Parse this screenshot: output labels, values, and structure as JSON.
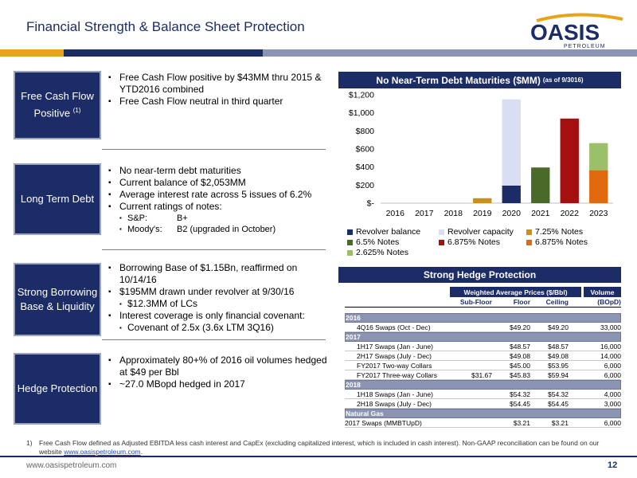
{
  "title": "Financial Strength & Balance Sheet Protection",
  "logo": {
    "brand": "OASIS",
    "sub": "PETROLEUM"
  },
  "sections": [
    {
      "label": "Free Cash Flow Positive",
      "sup": "(1)",
      "bullets": [
        {
          "text": "Free Cash Flow positive by $43MM thru 2015 & YTD2016 combined"
        },
        {
          "text": "Free Cash Flow neutral in third quarter"
        }
      ]
    },
    {
      "label": "Long Term Debt",
      "bullets": [
        {
          "text": "No near-term debt maturities"
        },
        {
          "text": "Current balance of $2,053MM"
        },
        {
          "text": "Average interest rate across 5 issues of 6.2%"
        },
        {
          "text": "Current ratings of notes:"
        }
      ],
      "ratings": [
        {
          "agency": "S&P:",
          "rating": "B+"
        },
        {
          "agency": "Moody's:",
          "rating": "B2 (upgraded in October)"
        }
      ]
    },
    {
      "label": "Strong Borrowing Base & Liquidity",
      "bullets": [
        {
          "text": "Borrowing Base of $1.15Bn, reaffirmed on 10/14/16"
        },
        {
          "text": "$195MM drawn under revolver at 9/30/16"
        },
        {
          "text": "$12.3MM of LCs",
          "sub": true
        },
        {
          "text": "Interest coverage is only financial covenant:"
        },
        {
          "text": "Covenant of 2.5x (3.6x LTM 3Q16)",
          "sub": true
        }
      ]
    },
    {
      "label": "Hedge Protection",
      "bullets": [
        {
          "text": "Approximately 80+% of 2016 oil volumes hedged at $49 per Bbl"
        },
        {
          "text": "~27.0 MBopd hedged in 2017"
        }
      ]
    }
  ],
  "chart_header": {
    "title": "No Near-Term Debt Maturities ($MM)",
    "note": "(as of 9/3016)"
  },
  "chart_data": {
    "type": "bar",
    "stacked": true,
    "categories": [
      "2016",
      "2017",
      "2018",
      "2019",
      "2020",
      "2021",
      "2022",
      "2023"
    ],
    "ylim": [
      0,
      1200
    ],
    "yticks": [
      0,
      200,
      400,
      600,
      800,
      1000,
      1200
    ],
    "ytick_labels": [
      "$-",
      "$200",
      "$400",
      "$600",
      "$800",
      "$1,000",
      "$1,200"
    ],
    "series": [
      {
        "name": "Revolver balance",
        "color": "#1c2c66",
        "values": [
          0,
          0,
          0,
          0,
          195,
          0,
          0,
          0
        ]
      },
      {
        "name": "Revolver capacity",
        "color": "#d9def3",
        "values": [
          0,
          0,
          0,
          0,
          955,
          0,
          0,
          0
        ]
      },
      {
        "name": "7.25% Notes",
        "color": "#c8901c",
        "values": [
          0,
          0,
          0,
          55,
          0,
          0,
          0,
          0
        ]
      },
      {
        "name": "6.5% Notes",
        "color": "#4a6a2a",
        "values": [
          0,
          0,
          0,
          0,
          0,
          395,
          0,
          0
        ]
      },
      {
        "name": "6.875% Notes",
        "color": "#a50f0f",
        "values": [
          0,
          0,
          0,
          0,
          0,
          0,
          937,
          0
        ]
      },
      {
        "name": "6.875% Notes",
        "color": "#e0690e",
        "values": [
          0,
          0,
          0,
          0,
          0,
          0,
          0,
          365
        ]
      },
      {
        "name": "2.625% Notes",
        "color": "#9cbf6a",
        "values": [
          0,
          0,
          0,
          0,
          0,
          0,
          0,
          300
        ]
      }
    ],
    "grid": false,
    "legend_position": "bottom"
  },
  "hedge": {
    "title": "Strong Hedge Protection",
    "group_header": "Weighted Average Prices ($/Bbl)",
    "volume_header": "Volume",
    "columns": [
      "",
      "Sub-Floor",
      "Floor",
      "Ceiling",
      "(BOpD)"
    ],
    "rows": [
      {
        "kind": "section",
        "cells": [
          "2016",
          "",
          "",
          "",
          ""
        ]
      },
      {
        "kind": "data",
        "cells": [
          "4Q16 Swaps (Oct - Dec)",
          "",
          "$49.20",
          "$49.20",
          "33,000"
        ]
      },
      {
        "kind": "section",
        "cells": [
          "2017",
          "",
          "",
          "",
          ""
        ]
      },
      {
        "kind": "data",
        "cells": [
          "1H17 Swaps (Jan - June)",
          "",
          "$48.57",
          "$48.57",
          "16,000"
        ]
      },
      {
        "kind": "data",
        "cells": [
          "2H17 Swaps (July - Dec)",
          "",
          "$49.08",
          "$49.08",
          "14,000"
        ]
      },
      {
        "kind": "data",
        "cells": [
          "FY2017 Two-way Collars",
          "",
          "$45.00",
          "$53.95",
          "6,000"
        ]
      },
      {
        "kind": "data",
        "cells": [
          "FY2017 Three-way Collars",
          "$31.67",
          "$45.83",
          "$59.94",
          "6,000"
        ]
      },
      {
        "kind": "section",
        "cells": [
          "2018",
          "",
          "",
          "",
          ""
        ]
      },
      {
        "kind": "data",
        "cells": [
          "1H18 Swaps (Jan - June)",
          "",
          "$54.32",
          "$54.32",
          "4,000"
        ]
      },
      {
        "kind": "data",
        "cells": [
          "2H18 Swaps (July - Dec)",
          "",
          "$54.45",
          "$54.45",
          "3,000"
        ]
      },
      {
        "kind": "section",
        "cells": [
          "Natural Gas",
          "",
          "",
          "",
          ""
        ]
      },
      {
        "kind": "data top",
        "cells": [
          "2017 Swaps (MMBTUpD)",
          "",
          "$3.21",
          "$3.21",
          "6,000"
        ]
      }
    ]
  },
  "footnote": {
    "num": "1)",
    "text": "Free Cash Flow defined as Adjusted EBITDA less cash interest and CapEx (excluding capitalized interest, which is included in cash interest). Non-GAAP reconciliation can be found on our website ",
    "link": "www.oasispetroleum.com",
    "tail": "."
  },
  "website": "www.oasispetroleum.com",
  "page_number": "12"
}
